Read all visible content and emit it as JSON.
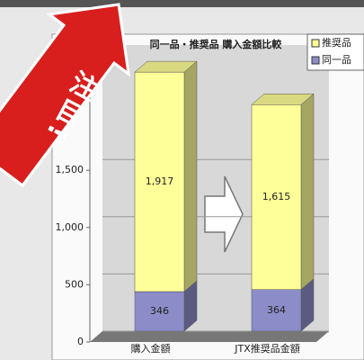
{
  "chart_data": {
    "type": "bar",
    "stacked": true,
    "title": "同一品・推奨品 購入金額比較",
    "annotation": "注目!",
    "categories": [
      "購入金額",
      "JTX推奨品金額"
    ],
    "series": [
      {
        "name": "同一品",
        "color": "#8c8cc8",
        "values": [
          346,
          364
        ]
      },
      {
        "name": "推奨品",
        "color": "#ffff99",
        "values": [
          1917,
          1615
        ],
        "value_labels": [
          "1,917",
          "1,615"
        ]
      }
    ],
    "ylim": [
      0,
      2500
    ],
    "yticks": [
      0,
      500,
      {
        "value": 1000,
        "label": "1,000"
      },
      {
        "value": 1500,
        "label": "1,500"
      }
    ],
    "grid": true,
    "legend": "top-right"
  }
}
